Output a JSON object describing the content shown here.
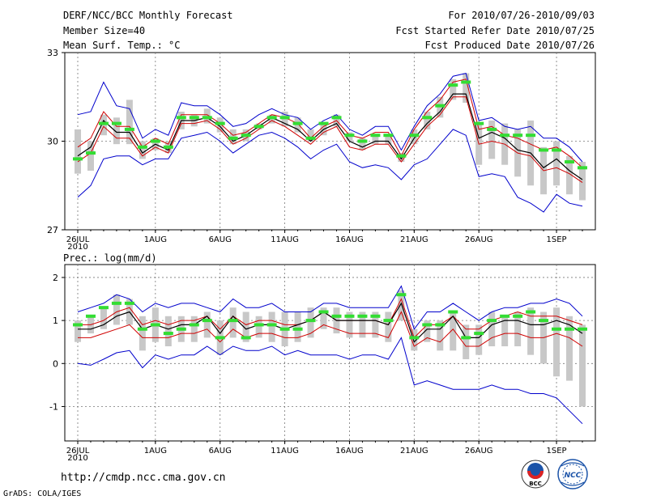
{
  "header": {
    "left_lines": [
      "DERF/NCC/BCC Monthly Forecast",
      "Member Size=40",
      "Mean Surf. Temp.: °C"
    ],
    "right_lines": [
      "For 2010/07/26-2010/09/03",
      "Fcst Started Refer Date 2010/07/25",
      "Fcst Produced Date 2010/07/26"
    ]
  },
  "footer": {
    "url": "http://cmdp.ncc.cma.gov.cn",
    "credit": "GrADS: COLA/IGES",
    "logo_left": "BCC",
    "logo_right": "NCC"
  },
  "colors": {
    "envelope": "#0000cc",
    "spread": "#d00000",
    "mean": "#000000",
    "box": "#c8c8c8",
    "median": "#33dd33"
  },
  "chart_data": [
    {
      "type": "line",
      "title": "Mean Surf. Temp.: °C",
      "x": [
        0,
        1,
        2,
        3,
        4,
        5,
        6,
        7,
        8,
        9,
        10,
        11,
        12,
        13,
        14,
        15,
        16,
        17,
        18,
        19,
        20,
        21,
        22,
        23,
        24,
        25,
        26,
        27,
        28,
        29,
        30,
        31,
        32,
        33,
        34,
        35,
        36,
        37,
        38,
        39
      ],
      "x_tick_labels": [
        {
          "x": 0,
          "label": "26JUL",
          "sub": "2010"
        },
        {
          "x": 6,
          "label": "1AUG"
        },
        {
          "x": 11,
          "label": "6AUG"
        },
        {
          "x": 16,
          "label": "11AUG"
        },
        {
          "x": 21,
          "label": "16AUG"
        },
        {
          "x": 26,
          "label": "21AUG"
        },
        {
          "x": 31,
          "label": "26AUG"
        },
        {
          "x": 37,
          "label": "1SEP"
        }
      ],
      "ylim": [
        27,
        33
      ],
      "yticks": [
        27,
        30,
        33
      ],
      "series": [
        {
          "name": "max",
          "values": [
            30.9,
            31.0,
            32.0,
            31.2,
            31.1,
            30.1,
            30.4,
            30.2,
            31.3,
            31.2,
            31.2,
            30.9,
            30.5,
            30.6,
            30.9,
            31.1,
            30.9,
            30.8,
            30.4,
            30.7,
            30.9,
            30.4,
            30.2,
            30.5,
            30.5,
            29.7,
            30.5,
            31.2,
            31.6,
            32.2,
            32.3,
            30.7,
            30.8,
            30.5,
            30.4,
            30.5,
            30.1,
            30.1,
            29.8,
            29.3
          ]
        },
        {
          "name": "upper",
          "values": [
            29.8,
            30.1,
            31.0,
            30.5,
            30.5,
            29.8,
            30.1,
            29.9,
            30.9,
            30.9,
            30.9,
            30.6,
            30.2,
            30.3,
            30.6,
            30.9,
            30.8,
            30.6,
            30.1,
            30.5,
            30.7,
            30.2,
            30.1,
            30.3,
            30.3,
            29.5,
            30.4,
            31.0,
            31.4,
            32.0,
            32.1,
            30.4,
            30.5,
            30.2,
            30.1,
            29.9,
            29.7,
            29.8,
            29.5,
            29.1
          ]
        },
        {
          "name": "mean",
          "values": [
            29.5,
            29.8,
            30.7,
            30.3,
            30.3,
            29.6,
            29.9,
            29.7,
            30.7,
            30.7,
            30.8,
            30.5,
            30.0,
            30.2,
            30.5,
            30.8,
            30.6,
            30.4,
            30.0,
            30.4,
            30.6,
            30.0,
            29.8,
            30.0,
            30.0,
            29.4,
            30.1,
            30.6,
            31.0,
            31.6,
            31.6,
            30.1,
            30.3,
            30.1,
            29.7,
            29.6,
            29.1,
            29.4,
            29.0,
            28.7
          ]
        },
        {
          "name": "lower",
          "values": [
            29.3,
            29.6,
            30.5,
            30.1,
            30.1,
            29.5,
            29.8,
            29.6,
            30.6,
            30.6,
            30.7,
            30.4,
            29.9,
            30.1,
            30.4,
            30.7,
            30.5,
            30.2,
            29.9,
            30.3,
            30.5,
            29.8,
            29.7,
            29.9,
            29.9,
            29.3,
            29.9,
            30.5,
            30.9,
            31.5,
            31.5,
            29.9,
            30.0,
            29.9,
            29.6,
            29.5,
            29.0,
            29.1,
            28.9,
            28.6
          ]
        },
        {
          "name": "min",
          "values": [
            28.1,
            28.5,
            29.4,
            29.5,
            29.5,
            29.2,
            29.4,
            29.4,
            30.1,
            30.2,
            30.3,
            30.0,
            29.6,
            29.9,
            30.2,
            30.3,
            30.1,
            29.8,
            29.4,
            29.7,
            29.9,
            29.3,
            29.1,
            29.2,
            29.1,
            28.7,
            29.2,
            29.4,
            29.9,
            30.4,
            30.2,
            28.8,
            28.9,
            28.8,
            28.1,
            27.9,
            27.6,
            28.2,
            27.9,
            27.8
          ]
        }
      ],
      "boxes": {
        "low": [
          28.9,
          29.0,
          30.2,
          29.9,
          29.9,
          29.4,
          29.7,
          29.6,
          30.4,
          30.5,
          30.6,
          30.3,
          29.9,
          30.0,
          30.4,
          30.6,
          30.5,
          30.3,
          30.0,
          30.2,
          30.5,
          30.0,
          29.7,
          29.9,
          29.9,
          29.3,
          29.9,
          30.4,
          30.8,
          31.4,
          31.3,
          29.2,
          29.4,
          29.2,
          28.8,
          28.5,
          28.2,
          28.5,
          28.2,
          28.0
        ],
        "high": [
          30.4,
          30.0,
          30.9,
          30.8,
          31.4,
          30.0,
          30.1,
          30.0,
          31.0,
          30.9,
          31.1,
          30.8,
          30.4,
          30.4,
          30.6,
          30.9,
          31.0,
          30.8,
          30.4,
          30.6,
          30.9,
          30.3,
          30.1,
          30.2,
          30.2,
          29.6,
          30.4,
          31.0,
          31.5,
          32.1,
          32.3,
          30.6,
          30.7,
          30.6,
          30.4,
          30.7,
          29.8,
          30.0,
          29.5,
          29.3
        ],
        "median": [
          29.4,
          29.6,
          30.6,
          30.6,
          30.4,
          29.8,
          30.0,
          29.8,
          30.8,
          30.8,
          30.8,
          30.6,
          30.1,
          30.2,
          30.5,
          30.8,
          30.8,
          30.6,
          30.1,
          30.6,
          30.8,
          30.2,
          30.0,
          30.2,
          30.2,
          29.5,
          30.2,
          30.8,
          31.2,
          31.9,
          32.0,
          30.6,
          30.4,
          30.2,
          30.2,
          30.2,
          29.7,
          29.7,
          29.3,
          29.1
        ]
      }
    },
    {
      "type": "line",
      "title": "Prec.: log(mm/d)",
      "x": [
        0,
        1,
        2,
        3,
        4,
        5,
        6,
        7,
        8,
        9,
        10,
        11,
        12,
        13,
        14,
        15,
        16,
        17,
        18,
        19,
        20,
        21,
        22,
        23,
        24,
        25,
        26,
        27,
        28,
        29,
        30,
        31,
        32,
        33,
        34,
        35,
        36,
        37,
        38,
        39
      ],
      "x_tick_labels": [
        {
          "x": 0,
          "label": "26JUL",
          "sub": "2010"
        },
        {
          "x": 6,
          "label": "1AUG"
        },
        {
          "x": 11,
          "label": "6AUG"
        },
        {
          "x": 16,
          "label": "11AUG"
        },
        {
          "x": 21,
          "label": "16AUG"
        },
        {
          "x": 26,
          "label": "21AUG"
        },
        {
          "x": 31,
          "label": "26AUG"
        },
        {
          "x": 37,
          "label": "1SEP"
        }
      ],
      "ylim": [
        -1.8,
        2.3
      ],
      "yticks": [
        -1,
        0,
        1,
        2
      ],
      "series": [
        {
          "name": "max",
          "values": [
            1.2,
            1.3,
            1.4,
            1.6,
            1.5,
            1.2,
            1.4,
            1.3,
            1.4,
            1.4,
            1.3,
            1.2,
            1.5,
            1.3,
            1.3,
            1.4,
            1.2,
            1.2,
            1.2,
            1.4,
            1.4,
            1.3,
            1.3,
            1.3,
            1.3,
            1.8,
            0.8,
            1.2,
            1.2,
            1.4,
            1.2,
            1.0,
            1.2,
            1.3,
            1.3,
            1.4,
            1.4,
            1.5,
            1.4,
            1.1
          ]
        },
        {
          "name": "upper",
          "values": [
            0.9,
            0.9,
            1.0,
            1.2,
            1.3,
            0.9,
            1.0,
            0.9,
            1.0,
            1.0,
            1.1,
            0.8,
            1.1,
            0.9,
            1.0,
            1.0,
            0.9,
            0.9,
            1.0,
            1.2,
            1.0,
            1.0,
            1.0,
            1.0,
            0.9,
            1.5,
            0.6,
            0.9,
            0.9,
            1.1,
            0.8,
            0.8,
            1.0,
            1.1,
            1.2,
            1.1,
            1.1,
            1.1,
            1.0,
            0.9
          ]
        },
        {
          "name": "mean",
          "values": [
            0.8,
            0.8,
            0.9,
            1.1,
            1.2,
            0.8,
            0.9,
            0.8,
            0.9,
            0.9,
            1.1,
            0.7,
            1.1,
            0.8,
            0.9,
            0.9,
            0.8,
            0.9,
            1.0,
            1.2,
            1.0,
            1.0,
            1.0,
            1.0,
            0.9,
            1.4,
            0.5,
            0.8,
            0.8,
            1.1,
            0.6,
            0.6,
            0.9,
            1.0,
            1.0,
            0.9,
            0.9,
            1.0,
            0.9,
            0.7
          ]
        },
        {
          "name": "lower",
          "values": [
            0.6,
            0.6,
            0.7,
            0.8,
            0.9,
            0.6,
            0.6,
            0.6,
            0.7,
            0.7,
            0.8,
            0.5,
            0.8,
            0.6,
            0.7,
            0.7,
            0.6,
            0.6,
            0.7,
            0.9,
            0.8,
            0.7,
            0.7,
            0.7,
            0.6,
            1.2,
            0.4,
            0.6,
            0.5,
            0.8,
            0.4,
            0.4,
            0.6,
            0.7,
            0.7,
            0.6,
            0.6,
            0.7,
            0.6,
            0.4
          ]
        },
        {
          "name": "min",
          "values": [
            0.0,
            -0.04,
            0.1,
            0.25,
            0.3,
            -0.1,
            0.2,
            0.1,
            0.2,
            0.2,
            0.4,
            0.2,
            0.4,
            0.3,
            0.3,
            0.4,
            0.2,
            0.3,
            0.2,
            0.2,
            0.2,
            0.1,
            0.2,
            0.2,
            0.1,
            0.6,
            -0.5,
            -0.4,
            -0.5,
            -0.6,
            -0.6,
            -0.6,
            -0.5,
            -0.6,
            -0.6,
            -0.7,
            -0.7,
            -0.8,
            -1.1,
            -1.4
          ]
        },
        {
          "name": "extra_max",
          "values": [
            null,
            null,
            null,
            null,
            null,
            null,
            null,
            null,
            null,
            null,
            null,
            null,
            null,
            null,
            null,
            null,
            null,
            null,
            null,
            null,
            null,
            null,
            null,
            null,
            null,
            null,
            null,
            null,
            null,
            null,
            null,
            null,
            null,
            null,
            null,
            null,
            null,
            null,
            null,
            1.1
          ]
        }
      ],
      "boxes": {
        "low": [
          0.5,
          0.7,
          0.8,
          0.9,
          0.9,
          0.3,
          0.5,
          0.4,
          0.5,
          0.5,
          0.6,
          0.2,
          0.6,
          0.5,
          0.6,
          0.5,
          0.4,
          0.5,
          0.6,
          0.8,
          0.7,
          0.6,
          0.6,
          0.6,
          0.5,
          1.0,
          0.3,
          0.5,
          0.3,
          0.3,
          0.1,
          0.2,
          0.4,
          0.4,
          0.4,
          0.2,
          0.0,
          -0.3,
          -0.4,
          -1.0
        ],
        "high": [
          1.0,
          1.1,
          1.3,
          1.6,
          1.5,
          1.1,
          1.3,
          1.1,
          1.1,
          1.1,
          1.2,
          1.0,
          1.3,
          1.2,
          1.1,
          1.2,
          1.2,
          1.2,
          1.3,
          1.3,
          1.3,
          1.2,
          1.2,
          1.2,
          1.2,
          1.7,
          0.8,
          1.0,
          1.0,
          1.2,
          0.9,
          0.9,
          1.2,
          1.1,
          1.2,
          1.3,
          1.2,
          1.3,
          1.1,
          0.9
        ]
      },
      "medians_note": "",
      "medians": [
        0.9,
        1.1,
        1.3,
        1.4,
        1.4,
        0.8,
        0.9,
        0.7,
        0.8,
        0.9,
        1.0,
        0.6,
        1.0,
        0.6,
        0.9,
        0.9,
        0.8,
        0.8,
        1.0,
        1.2,
        1.1,
        1.1,
        1.1,
        1.1,
        1.0,
        1.6,
        0.6,
        0.9,
        0.9,
        1.2,
        0.6,
        0.7,
        1.0,
        1.1,
        1.1,
        1.2,
        1.0,
        0.8,
        0.8,
        0.8
      ]
    }
  ]
}
